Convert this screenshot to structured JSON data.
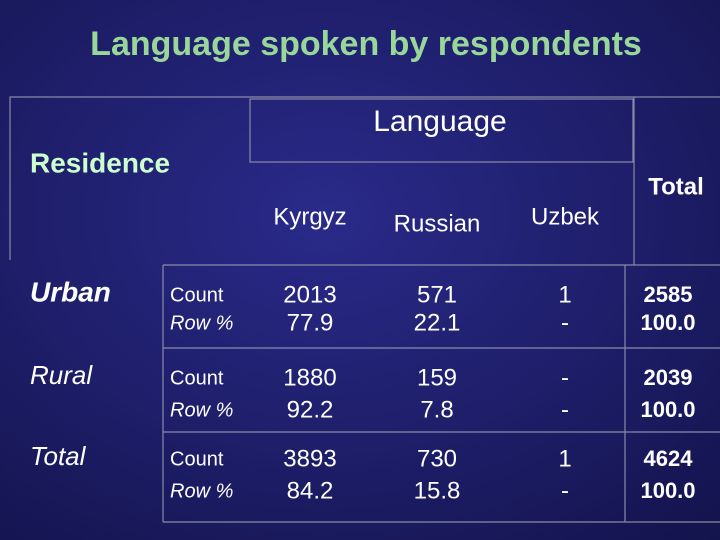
{
  "title": "Language spoken by respondents",
  "table": {
    "row_header": "Residence",
    "group_header": "Language",
    "total_header": "Total",
    "columns": [
      "Kyrgyz",
      "Russian",
      "Uzbek"
    ],
    "rows": [
      {
        "label": "Urban",
        "measures": [
          "Count",
          "Row %"
        ],
        "cells": [
          [
            "2013",
            "77.9"
          ],
          [
            "571",
            "22.1"
          ],
          [
            "1",
            "-"
          ],
          [
            "2585",
            "100.0"
          ]
        ]
      },
      {
        "label": "Rural",
        "measures": [
          "Count",
          "Row %"
        ],
        "cells": [
          [
            "1880",
            "92.2"
          ],
          [
            "159",
            "7.8"
          ],
          [
            "-",
            "-"
          ],
          [
            "2039",
            "100.0"
          ]
        ]
      },
      {
        "label": "Total",
        "measures": [
          "Count",
          "Row %"
        ],
        "cells": [
          [
            "3893",
            "84.2"
          ],
          [
            "730",
            "15.8"
          ],
          [
            "1",
            "-"
          ],
          [
            "4624",
            "100.0"
          ]
        ]
      }
    ]
  }
}
